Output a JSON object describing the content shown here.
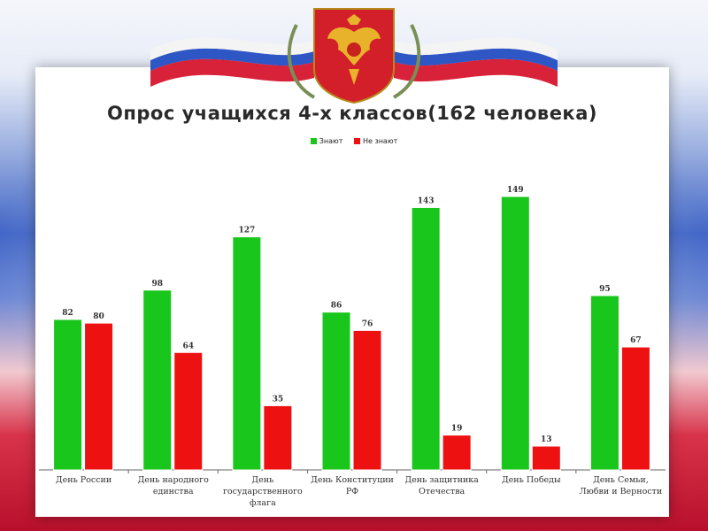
{
  "chart_data": {
    "type": "bar",
    "title": "Опрос учащихся 4-х классов(162 человека)",
    "categories": [
      [
        "День России"
      ],
      [
        "День народного",
        "единства"
      ],
      [
        "День",
        "государственного",
        "флага"
      ],
      [
        "День Конституции",
        "РФ"
      ],
      [
        "День защитника",
        "Отечества"
      ],
      [
        "День Победы"
      ],
      [
        "День Семьи,",
        "Любви и Верности"
      ]
    ],
    "series": [
      {
        "name": "Знают",
        "color": "#19c61c",
        "values": [
          82,
          98,
          127,
          86,
          143,
          149,
          95
        ]
      },
      {
        "name": "Не знают",
        "color": "#ee1111",
        "values": [
          80,
          64,
          35,
          76,
          19,
          13,
          67
        ]
      }
    ],
    "ylim": [
      0,
      162
    ],
    "grid": false,
    "legend_position": "top"
  },
  "decor": {
    "flag_colors": [
      "#ffffff",
      "#2a4fbf",
      "#d41f38"
    ],
    "emblem": "double-headed-eagle-coat-of-arms"
  }
}
